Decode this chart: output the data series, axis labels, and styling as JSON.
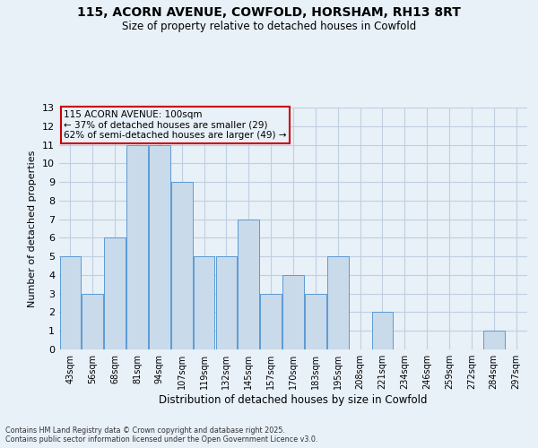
{
  "title": "115, ACORN AVENUE, COWFOLD, HORSHAM, RH13 8RT",
  "subtitle": "Size of property relative to detached houses in Cowfold",
  "xlabel": "Distribution of detached houses by size in Cowfold",
  "ylabel": "Number of detached properties",
  "categories": [
    "43sqm",
    "56sqm",
    "68sqm",
    "81sqm",
    "94sqm",
    "107sqm",
    "119sqm",
    "132sqm",
    "145sqm",
    "157sqm",
    "170sqm",
    "183sqm",
    "195sqm",
    "208sqm",
    "221sqm",
    "234sqm",
    "246sqm",
    "259sqm",
    "272sqm",
    "284sqm",
    "297sqm"
  ],
  "values": [
    5,
    3,
    6,
    11,
    11,
    9,
    5,
    5,
    7,
    3,
    4,
    3,
    5,
    0,
    2,
    0,
    0,
    0,
    0,
    1,
    0
  ],
  "bar_color": "#c9daea",
  "bar_edge_color": "#5b9bd5",
  "bg_color": "#e8f0f8",
  "annotation_text": "115 ACORN AVENUE: 100sqm\n← 37% of detached houses are smaller (29)\n62% of semi-detached houses are larger (49) →",
  "annotation_box_edge_color": "#cc0000",
  "footer_line1": "Contains HM Land Registry data © Crown copyright and database right 2025.",
  "footer_line2": "Contains public sector information licensed under the Open Government Licence v3.0.",
  "ylim": [
    0,
    13
  ],
  "yticks": [
    0,
    1,
    2,
    3,
    4,
    5,
    6,
    7,
    8,
    9,
    10,
    11,
    12,
    13
  ],
  "grid_color": "#c0cfe0"
}
